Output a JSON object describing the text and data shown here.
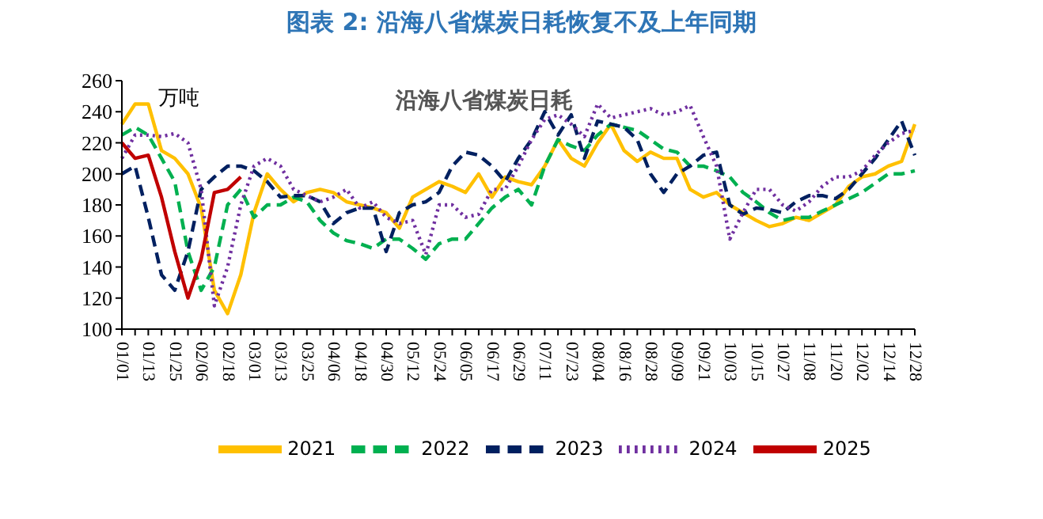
{
  "chart_data": {
    "type": "line",
    "title": "图表 2:  沿海八省煤炭日耗恢复不及上年同期",
    "subtitle": "沿海八省煤炭日耗",
    "ylabel": "万吨",
    "categories": [
      "01/01",
      null,
      "01/13",
      null,
      "01/25",
      null,
      "02/06",
      null,
      "02/18",
      null,
      "03/01",
      null,
      "03/13",
      null,
      "03/25",
      null,
      "04/06",
      null,
      "04/18",
      null,
      "04/30",
      null,
      "05/12",
      null,
      "05/24",
      null,
      "06/05",
      null,
      "06/17",
      null,
      "06/29",
      null,
      "07/11",
      null,
      "07/23",
      null,
      "08/04",
      null,
      "08/16",
      null,
      "08/28",
      null,
      "09/09",
      null,
      "09/21",
      null,
      "10/03",
      null,
      "10/15",
      null,
      "10/27",
      null,
      "11/08",
      null,
      "11/20",
      null,
      "12/02",
      null,
      "12/14",
      null,
      "12/28"
    ],
    "series": [
      {
        "name": "2021",
        "color": "#ffc000",
        "line_style": "solid",
        "values": [
          232,
          245,
          245,
          215,
          210,
          200,
          178,
          125,
          110,
          135,
          175,
          200,
          190,
          182,
          188,
          190,
          188,
          182,
          180,
          178,
          175,
          165,
          185,
          190,
          195,
          192,
          188,
          200,
          185,
          198,
          195,
          193,
          205,
          222,
          210,
          205,
          220,
          232,
          215,
          208,
          214,
          210,
          210,
          190,
          185,
          188,
          180,
          175,
          170,
          166,
          168,
          172,
          170,
          175,
          180,
          192,
          198,
          200,
          205,
          208,
          232
        ]
      },
      {
        "name": "2022",
        "color": "#00b050",
        "line_style": "dashed",
        "values": [
          225,
          230,
          225,
          210,
          195,
          150,
          125,
          140,
          180,
          190,
          172,
          180,
          180,
          185,
          182,
          170,
          162,
          157,
          155,
          152,
          158,
          158,
          152,
          145,
          155,
          158,
          158,
          168,
          178,
          185,
          190,
          180,
          205,
          222,
          218,
          215,
          225,
          232,
          230,
          228,
          222,
          216,
          214,
          205,
          205,
          202,
          198,
          188,
          182,
          175,
          170,
          172,
          172,
          176,
          180,
          184,
          188,
          194,
          200,
          200,
          202
        ]
      },
      {
        "name": "2023",
        "color": "#002060",
        "line_style": "dashed",
        "values": [
          200,
          205,
          172,
          135,
          125,
          150,
          190,
          198,
          205,
          205,
          202,
          195,
          185,
          186,
          186,
          182,
          168,
          175,
          178,
          178,
          150,
          175,
          180,
          182,
          188,
          205,
          214,
          212,
          205,
          195,
          210,
          222,
          240,
          225,
          238,
          210,
          234,
          232,
          230,
          222,
          200,
          188,
          200,
          205,
          212,
          214,
          180,
          174,
          178,
          177,
          175,
          182,
          186,
          186,
          184,
          190,
          200,
          210,
          222,
          234,
          212
        ]
      },
      {
        "name": "2024",
        "color": "#7030a0",
        "line_style": "dotted",
        "values": [
          210,
          225,
          225,
          224,
          226,
          220,
          190,
          115,
          140,
          180,
          205,
          210,
          205,
          190,
          186,
          182,
          185,
          190,
          178,
          182,
          172,
          168,
          170,
          148,
          180,
          180,
          172,
          174,
          190,
          190,
          205,
          222,
          235,
          238,
          232,
          224,
          245,
          236,
          238,
          240,
          242,
          238,
          240,
          244,
          224,
          205,
          158,
          175,
          190,
          190,
          180,
          176,
          182,
          192,
          198,
          198,
          202,
          212,
          220,
          226,
          228
        ]
      },
      {
        "name": "2025",
        "color": "#c00000",
        "line_style": "solid",
        "values": [
          220,
          210,
          212,
          185,
          150,
          120,
          145,
          188,
          190,
          198,
          null,
          null,
          null,
          null,
          null,
          null,
          null,
          null,
          null,
          null,
          null,
          null,
          null,
          null,
          null,
          null,
          null,
          null,
          null,
          null,
          null,
          null,
          null,
          null,
          null,
          null,
          null,
          null,
          null,
          null,
          null,
          null,
          null,
          null,
          null,
          null,
          null,
          null,
          null,
          null,
          null,
          null,
          null,
          null,
          null,
          null,
          null,
          null,
          null,
          null,
          null
        ]
      }
    ],
    "ylim": [
      100,
      260
    ],
    "yticks": [
      100,
      120,
      140,
      160,
      180,
      200,
      220,
      240,
      260
    ],
    "grid": false,
    "legend": "bottom",
    "marker": "none"
  }
}
